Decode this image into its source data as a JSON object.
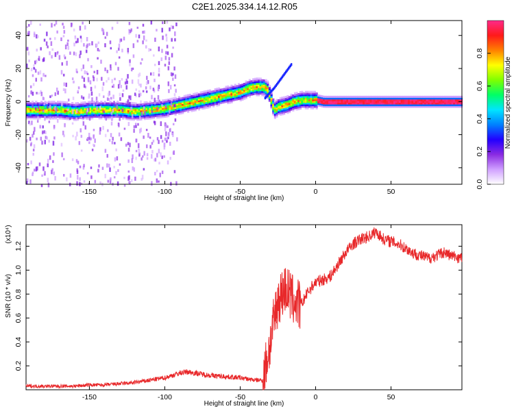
{
  "figure": {
    "title": "C2E1.2025.334.14.12.R05"
  },
  "chart_data": [
    {
      "type": "heatmap",
      "xlabel": "Height of straight line (km)",
      "ylabel": "Frequency (Hz)",
      "xlim": [
        -192,
        97
      ],
      "ylim": [
        -50,
        49
      ],
      "xticks": [
        -150,
        -100,
        -50,
        0,
        50
      ],
      "yticks": [
        -40,
        -20,
        0,
        20,
        40
      ],
      "colorbar": {
        "label": "Normalized spectral amplitude",
        "range": [
          0,
          1
        ],
        "ticks": [
          "0.0",
          "0.2",
          "0.4",
          "0.6",
          "0.8"
        ],
        "colormap": [
          "#ffffff",
          "#d0a0ff",
          "#8a2be2",
          "#2200ff",
          "#0080ff",
          "#00e5ff",
          "#00ff66",
          "#7fff00",
          "#ffff00",
          "#ff8000",
          "#ff1a1a",
          "#ff2a8a"
        ]
      },
      "ridge": {
        "x": [
          -192,
          -170,
          -160,
          -150,
          -140,
          -130,
          -120,
          -110,
          -100,
          -90,
          -80,
          -70,
          -60,
          -50,
          -45,
          -40,
          -35,
          -32,
          -28,
          -25,
          -20,
          -15,
          -10,
          -5,
          0,
          5,
          10,
          20,
          40,
          60,
          80,
          97
        ],
        "freq": [
          -5,
          -5,
          -6,
          -5,
          -5,
          -5,
          -6,
          -5,
          -4,
          -2,
          0,
          2,
          4,
          6,
          8,
          9,
          9,
          7,
          -5,
          -3,
          -2,
          0,
          1,
          1,
          1,
          0,
          0,
          0,
          0,
          0,
          0,
          0
        ]
      },
      "burst": {
        "x": [
          -34,
          -28,
          -24,
          -20,
          -16
        ],
        "freq": [
          2,
          8,
          13,
          18,
          23
        ]
      }
    },
    {
      "type": "line",
      "xlabel": "Height of straight line (km)",
      "ylabel": "SNR (10 * v/v)",
      "yunit": "(x10⁴)",
      "xlim": [
        -192,
        97
      ],
      "ylim": [
        0,
        1.38
      ],
      "xticks": [
        -150,
        -100,
        -50,
        0,
        50
      ],
      "yticks": [
        0.2,
        0.4,
        0.6,
        0.8,
        1.0,
        1.2
      ],
      "ytick_labels": [
        "0.2",
        "0.4",
        "0.6",
        "0.8",
        "1.0",
        "1.2"
      ],
      "color": "#e8282a",
      "series": [
        {
          "x": [
            -192,
            -180,
            -170,
            -160,
            -150,
            -140,
            -130,
            -120,
            -110,
            -100,
            -90,
            -85,
            -80,
            -70,
            -60,
            -50,
            -45,
            -40,
            -35,
            -30,
            -25,
            -20,
            -15,
            -10,
            -5,
            0,
            5,
            10,
            15,
            20,
            25,
            30,
            35,
            40,
            45,
            50,
            55,
            60,
            65,
            70,
            75,
            80,
            85,
            90,
            97
          ],
          "y": [
            0.03,
            0.03,
            0.03,
            0.03,
            0.04,
            0.04,
            0.05,
            0.06,
            0.08,
            0.1,
            0.14,
            0.15,
            0.14,
            0.12,
            0.11,
            0.1,
            0.09,
            0.08,
            0.08,
            0.4,
            0.75,
            0.85,
            0.75,
            0.7,
            0.82,
            0.9,
            0.92,
            0.95,
            1.05,
            1.15,
            1.22,
            1.26,
            1.28,
            1.32,
            1.26,
            1.24,
            1.22,
            1.18,
            1.14,
            1.12,
            1.1,
            1.12,
            1.15,
            1.12,
            1.1
          ]
        }
      ]
    }
  ]
}
